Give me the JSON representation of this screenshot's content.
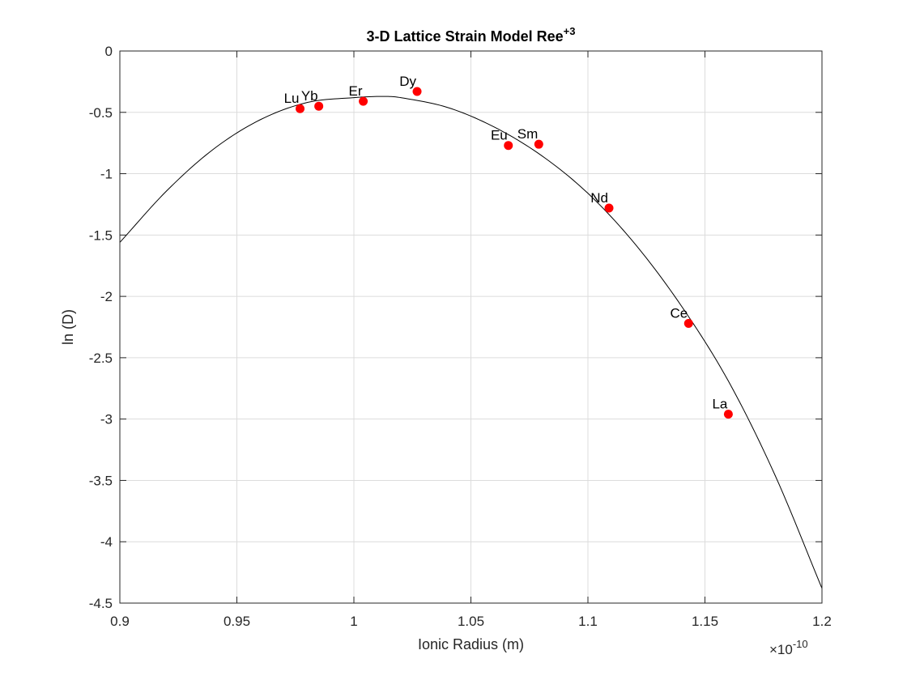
{
  "chart_data": {
    "type": "scatter",
    "title": "3-D Lattice Strain Model Ree",
    "title_superscript": "+3",
    "xlabel": "Ionic Radius (m)",
    "ylabel": "ln (D)",
    "x_exponent_base": "×10",
    "x_exponent_power": "-10",
    "xlim": [
      0.9,
      1.2
    ],
    "ylim": [
      -4.5,
      0
    ],
    "xticks": [
      "0.9",
      "0.95",
      "1",
      "1.05",
      "1.1",
      "1.15",
      "1.2"
    ],
    "yticks": [
      "0",
      "-0.5",
      "-1",
      "-1.5",
      "-2",
      "-2.5",
      "-3",
      "-3.5",
      "-4",
      "-4.5"
    ],
    "grid": true,
    "marker_color": "#ff0000",
    "curve_color": "#000000",
    "points": [
      {
        "label": "Lu",
        "x": 0.977,
        "y": -0.47
      },
      {
        "label": "Yb",
        "x": 0.985,
        "y": -0.45
      },
      {
        "label": "Er",
        "x": 1.004,
        "y": -0.41
      },
      {
        "label": "Dy",
        "x": 1.027,
        "y": -0.33
      },
      {
        "label": "Eu",
        "x": 1.066,
        "y": -0.77
      },
      {
        "label": "Sm",
        "x": 1.079,
        "y": -0.76
      },
      {
        "label": "Nd",
        "x": 1.109,
        "y": -1.28
      },
      {
        "label": "Ce",
        "x": 1.143,
        "y": -2.22
      },
      {
        "label": "La",
        "x": 1.16,
        "y": -2.96
      }
    ],
    "curve": {
      "x": [
        0.9,
        0.92,
        0.94,
        0.96,
        0.98,
        1.0,
        1.013,
        1.02,
        1.04,
        1.06,
        1.08,
        1.1,
        1.12,
        1.14,
        1.16,
        1.18,
        1.2
      ],
      "y": [
        -1.56,
        -1.14,
        -0.8,
        -0.56,
        -0.42,
        -0.38,
        -0.37,
        -0.38,
        -0.46,
        -0.62,
        -0.85,
        -1.16,
        -1.57,
        -2.08,
        -2.69,
        -3.46,
        -4.38
      ]
    }
  }
}
